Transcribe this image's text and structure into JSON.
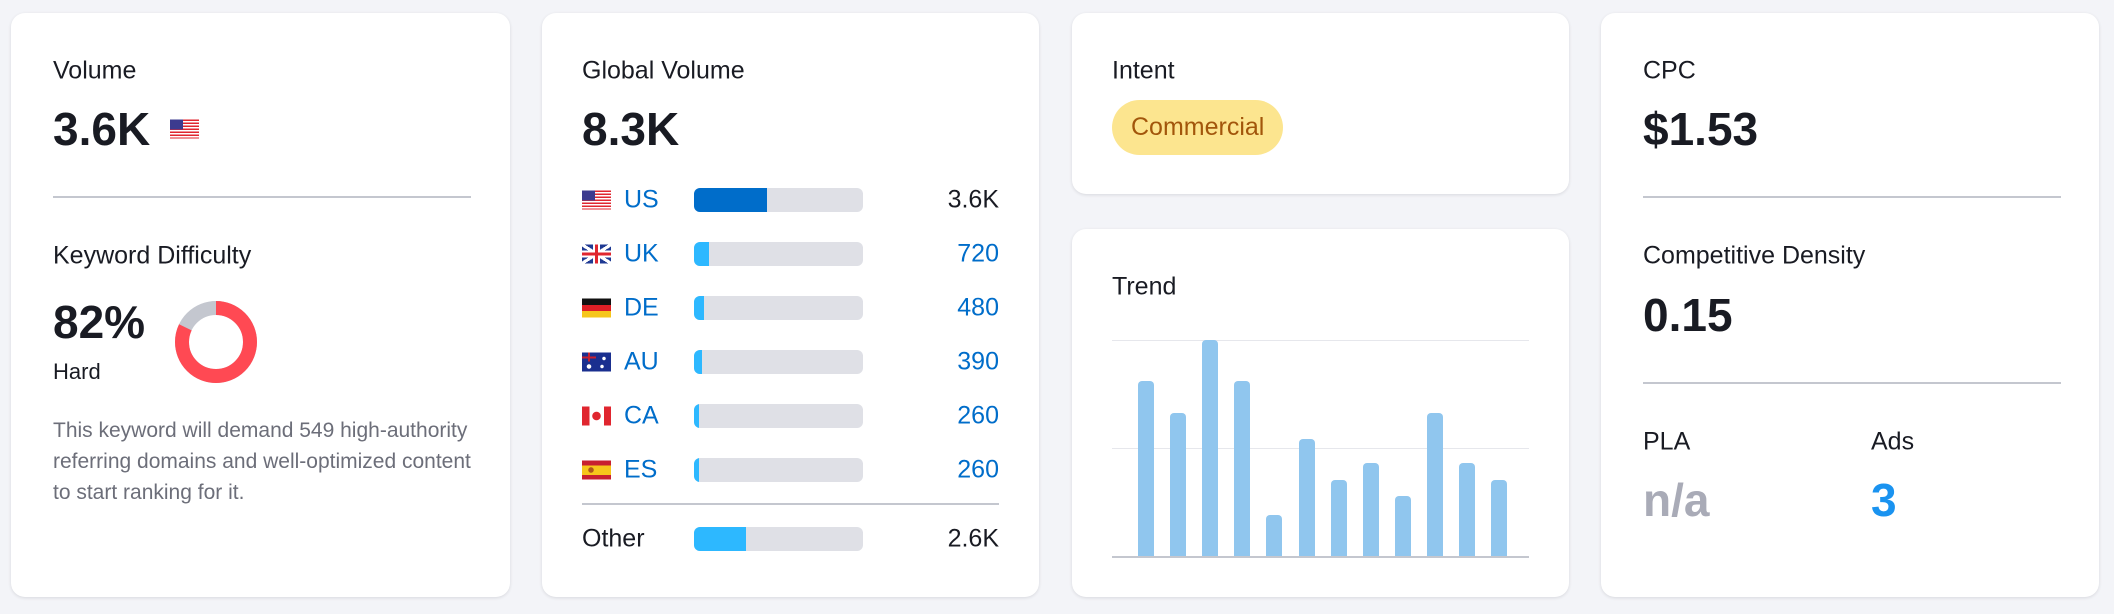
{
  "volume": {
    "label": "Volume",
    "value": "3.6K",
    "flag": "us-flag-icon"
  },
  "keyword_difficulty": {
    "label": "Keyword Difficulty",
    "value": "82%",
    "percent": 82,
    "level": "Hard",
    "description": "This keyword will demand 549 high-authority referring domains and well-optimized content to start ranking for it.",
    "colors": {
      "filled": "#ff4953",
      "empty": "#c4c7cf"
    }
  },
  "global_volume": {
    "label": "Global Volume",
    "value": "8.3K",
    "rows": [
      {
        "code": "US",
        "flag": "flag-us",
        "value": "3.6K",
        "share": 0.43,
        "highlight": true
      },
      {
        "code": "UK",
        "flag": "flag-uk",
        "value": "720",
        "share": 0.087
      },
      {
        "code": "DE",
        "flag": "flag-de",
        "value": "480",
        "share": 0.058
      },
      {
        "code": "AU",
        "flag": "flag-au",
        "value": "390",
        "share": 0.047
      },
      {
        "code": "CA",
        "flag": "flag-ca",
        "value": "260",
        "share": 0.031
      },
      {
        "code": "ES",
        "flag": "flag-es",
        "value": "260",
        "share": 0.031
      }
    ],
    "other": {
      "label": "Other",
      "value": "2.6K",
      "share": 0.31
    },
    "colors": {
      "primary": "#006dca",
      "secondary": "#2db8ff",
      "track": "#dfe0e6"
    }
  },
  "intent": {
    "label": "Intent",
    "badge": "Commercial",
    "badge_color": "#fce58f"
  },
  "trend": {
    "label": "Trend"
  },
  "chart_data": {
    "type": "bar",
    "title": "Trend",
    "values": [
      81,
      66,
      100,
      81,
      19,
      54,
      35,
      43,
      28,
      66,
      43,
      35
    ],
    "ylim": [
      0,
      100
    ],
    "grid": true,
    "color": "#90c6ee"
  },
  "cpc": {
    "label": "CPC",
    "value": "$1.53"
  },
  "competitive_density": {
    "label": "Competitive Density",
    "value": "0.15"
  },
  "pla": {
    "label": "PLA",
    "value": "n/a"
  },
  "ads": {
    "label": "Ads",
    "value": "3"
  }
}
